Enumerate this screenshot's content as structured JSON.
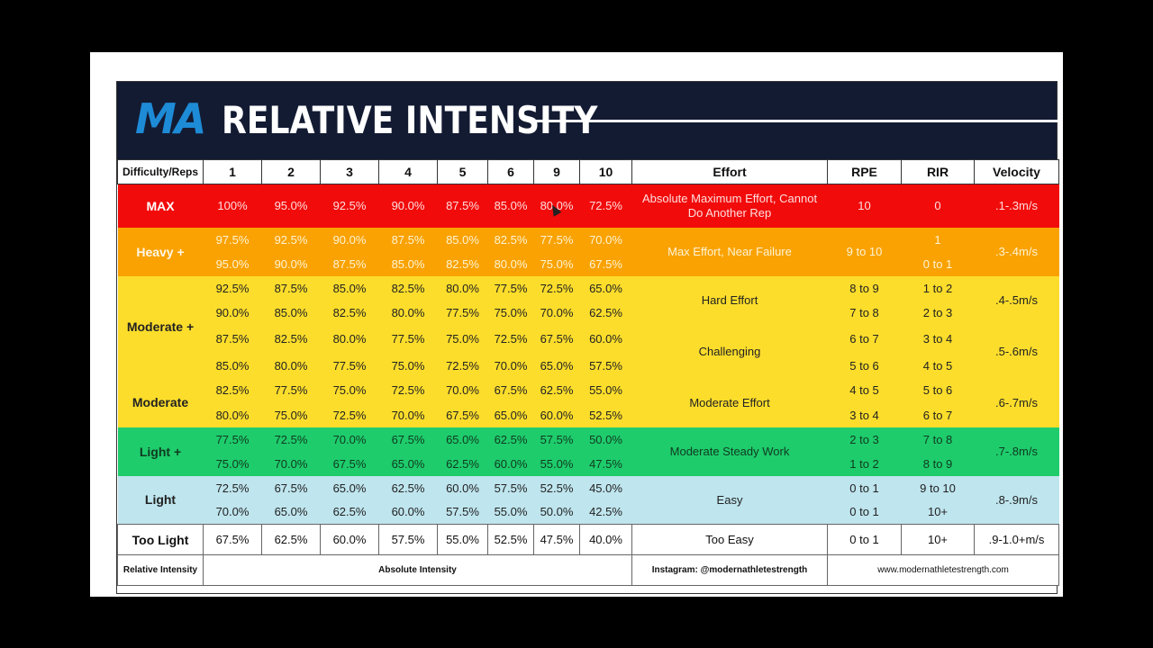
{
  "banner": {
    "logo": "MA",
    "title": "RELATIVE INTENSITY"
  },
  "header": {
    "first": "Difficulty/Reps",
    "reps": [
      "1",
      "2",
      "3",
      "4",
      "5",
      "6",
      "9",
      "10"
    ],
    "effort": "Effort",
    "rpe": "RPE",
    "rir": "RIR",
    "velocity": "Velocity"
  },
  "max": {
    "label": "MAX",
    "values": [
      "100%",
      "95.0%",
      "92.5%",
      "90.0%",
      "87.5%",
      "85.0%",
      "80.0%",
      "72.5%"
    ],
    "effort": "Absolute Maximum Effort, Cannot Do Another Rep",
    "rpe": "10",
    "rir": "0",
    "velocity": ".1-.3m/s"
  },
  "heavy": {
    "label": "Heavy +",
    "row1": [
      "97.5%",
      "92.5%",
      "90.0%",
      "87.5%",
      "85.0%",
      "82.5%",
      "77.5%",
      "70.0%"
    ],
    "row2": [
      "95.0%",
      "90.0%",
      "87.5%",
      "85.0%",
      "82.5%",
      "80.0%",
      "75.0%",
      "67.5%"
    ],
    "effort": "Max Effort, Near Failure",
    "rpe": "9 to 10",
    "rir1": "1",
    "rir2": "0 to 1",
    "velocity": ".3-.4m/s"
  },
  "modplus": {
    "label": "Moderate +",
    "row1": [
      "92.5%",
      "87.5%",
      "85.0%",
      "82.5%",
      "80.0%",
      "77.5%",
      "72.5%",
      "65.0%"
    ],
    "row2": [
      "90.0%",
      "85.0%",
      "82.5%",
      "80.0%",
      "77.5%",
      "75.0%",
      "70.0%",
      "62.5%"
    ],
    "row3": [
      "87.5%",
      "82.5%",
      "80.0%",
      "77.5%",
      "75.0%",
      "72.5%",
      "67.5%",
      "60.0%"
    ],
    "row4": [
      "85.0%",
      "80.0%",
      "77.5%",
      "75.0%",
      "72.5%",
      "70.0%",
      "65.0%",
      "57.5%"
    ],
    "effortA": "Hard Effort",
    "rpeA1": "8 to 9",
    "rpeA2": "7 to 8",
    "rirA1": "1 to 2",
    "rirA2": "2 to 3",
    "velocityA": ".4-.5m/s",
    "effortB": "Challenging",
    "rpeB1": "6 to 7",
    "rpeB2": "5 to 6",
    "rirB1": "3 to 4",
    "rirB2": "4 to 5",
    "velocityB": ".5-.6m/s"
  },
  "moderate": {
    "label": "Moderate",
    "row1": [
      "82.5%",
      "77.5%",
      "75.0%",
      "72.5%",
      "70.0%",
      "67.5%",
      "62.5%",
      "55.0%"
    ],
    "row2": [
      "80.0%",
      "75.0%",
      "72.5%",
      "70.0%",
      "67.5%",
      "65.0%",
      "60.0%",
      "52.5%"
    ],
    "effort": "Moderate Effort",
    "rpe1": "4 to 5",
    "rpe2": "3 to 4",
    "rir1": "5 to 6",
    "rir2": "6 to 7",
    "velocity": ".6-.7m/s"
  },
  "lightplus": {
    "label": "Light +",
    "row1": [
      "77.5%",
      "72.5%",
      "70.0%",
      "67.5%",
      "65.0%",
      "62.5%",
      "57.5%",
      "50.0%"
    ],
    "row2": [
      "75.0%",
      "70.0%",
      "67.5%",
      "65.0%",
      "62.5%",
      "60.0%",
      "55.0%",
      "47.5%"
    ],
    "effort": "Moderate Steady Work",
    "rpe1": "2 to 3",
    "rpe2": "1 to 2",
    "rir1": "7 to 8",
    "rir2": "8 to 9",
    "velocity": ".7-.8m/s"
  },
  "light": {
    "label": "Light",
    "row1": [
      "72.5%",
      "67.5%",
      "65.0%",
      "62.5%",
      "60.0%",
      "57.5%",
      "52.5%",
      "45.0%"
    ],
    "row2": [
      "70.0%",
      "65.0%",
      "62.5%",
      "60.0%",
      "57.5%",
      "55.0%",
      "50.0%",
      "42.5%"
    ],
    "effort": "Easy",
    "rpe1": "0 to 1",
    "rpe2": "0 to 1",
    "rir1": "9 to 10",
    "rir2": "10+",
    "velocity": ".8-.9m/s"
  },
  "toolight": {
    "label": "Too Light",
    "values": [
      "67.5%",
      "62.5%",
      "60.0%",
      "57.5%",
      "55.0%",
      "52.5%",
      "47.5%",
      "40.0%"
    ],
    "effort": "Too Easy",
    "rpe": "0 to 1",
    "rir": "10+",
    "velocity": ".9-1.0+m/s"
  },
  "footer": {
    "relative": "Relative Intensity",
    "absolute": "Absolute Intensity",
    "instagram": "Instagram: @modernathletestrength",
    "website": "www.modernathletestrength.com"
  }
}
